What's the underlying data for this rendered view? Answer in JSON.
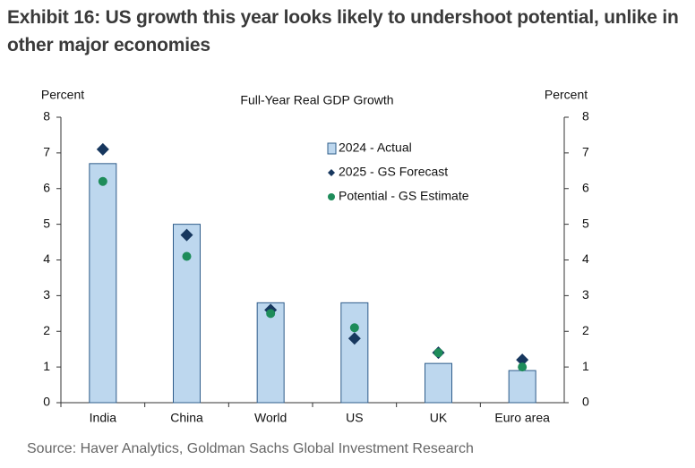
{
  "chart_data": {
    "type": "bar",
    "title": "Exhibit 16: US growth this year looks likely to undershoot potential, unlike in other major economies",
    "subtitle": "Full-Year Real GDP Growth",
    "ylabel": "Percent",
    "y2label": "Percent",
    "categories": [
      "India",
      "China",
      "World",
      "US",
      "UK",
      "Euro area"
    ],
    "series": [
      {
        "name": "2024 - Actual",
        "marker": "bar",
        "color": "#bdd7ee",
        "values": [
          6.7,
          5.0,
          2.8,
          2.8,
          1.1,
          0.9
        ]
      },
      {
        "name": "2025 - GS Forecast",
        "marker": "diamond",
        "color": "#17375e",
        "values": [
          7.1,
          4.7,
          2.6,
          1.8,
          1.4,
          1.2
        ]
      },
      {
        "name": "Potential - GS Estimate",
        "marker": "circle",
        "color": "#1e8c5a",
        "values": [
          6.2,
          4.1,
          2.5,
          2.1,
          1.4,
          1.0
        ]
      }
    ],
    "ylim": [
      0,
      8
    ],
    "yticks": [
      0,
      1,
      2,
      3,
      4,
      5,
      6,
      7,
      8
    ],
    "y2lim": [
      0,
      8
    ],
    "y2ticks": [
      0,
      1,
      2,
      3,
      4,
      5,
      6,
      7,
      8
    ],
    "source": "Source: Haver Analytics, Goldman Sachs Global Investment Research"
  }
}
